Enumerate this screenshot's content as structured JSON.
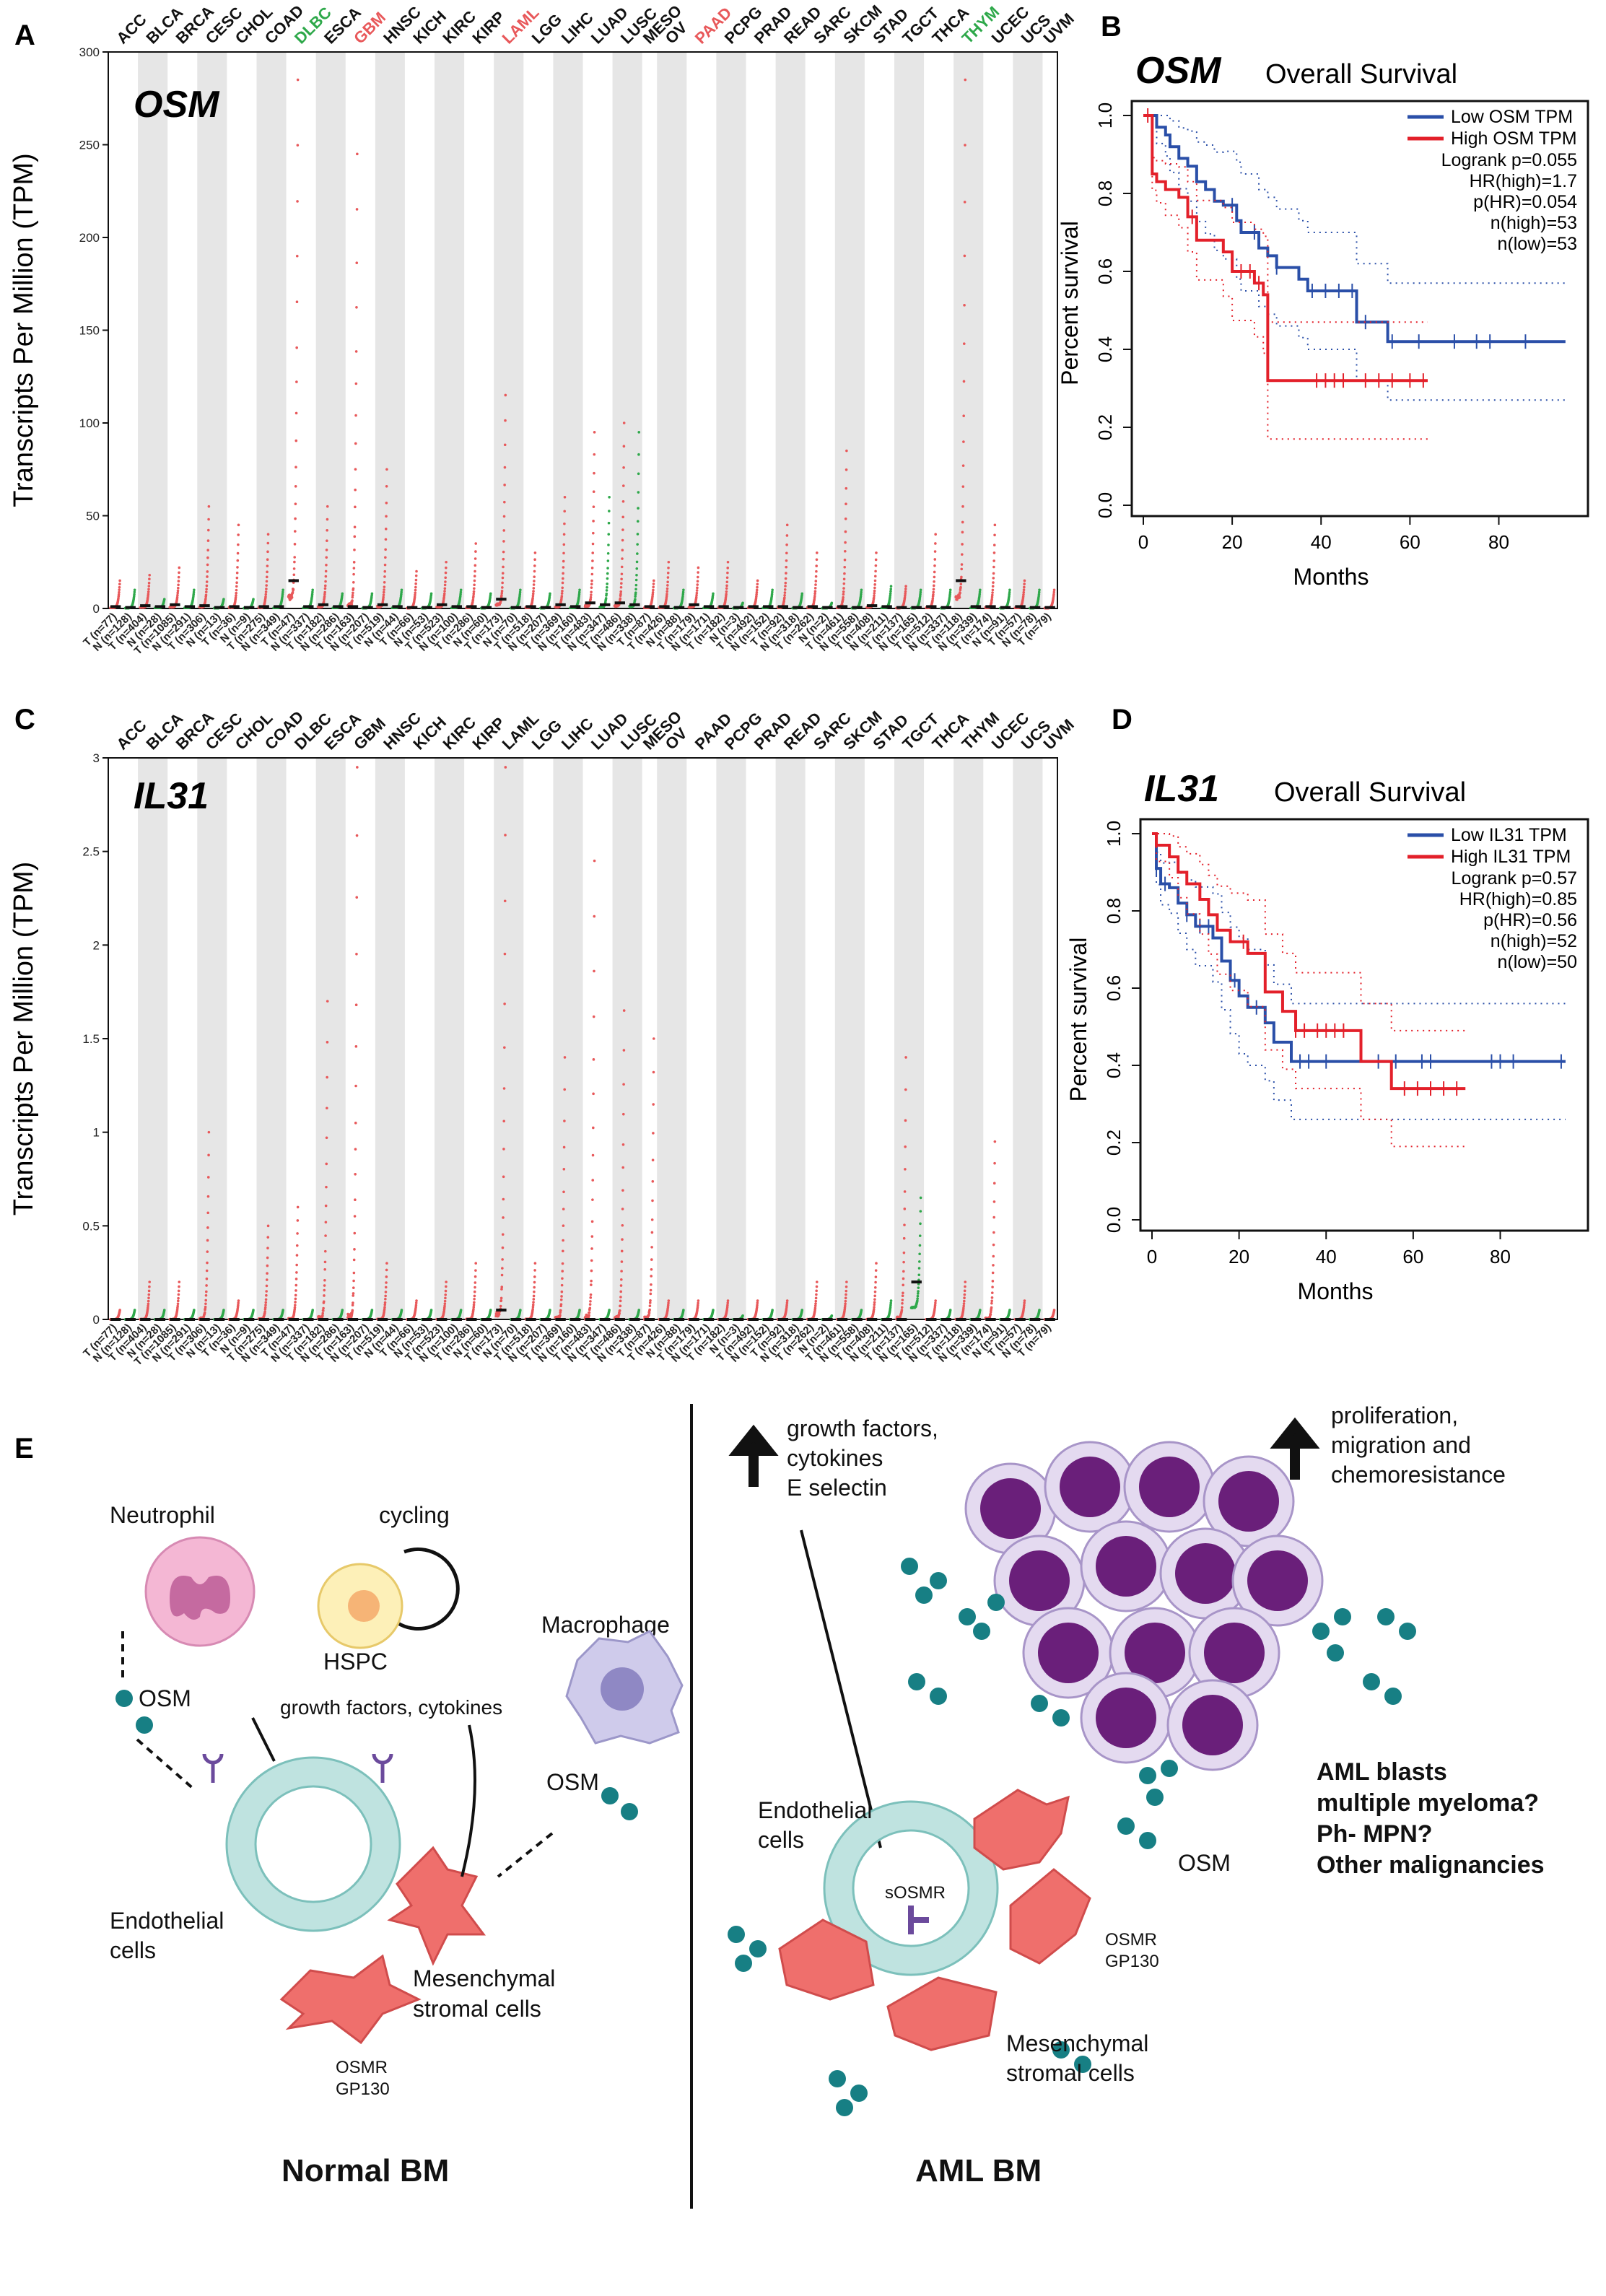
{
  "panels": {
    "a": "A",
    "b": "B",
    "c": "C",
    "d": "D",
    "e": "E"
  },
  "colors": {
    "tumor": "#e8585a",
    "normal": "#2ea84a",
    "band": "#e6e6e6",
    "low": "#2a4fa8",
    "high": "#e3202a",
    "teal": "#177f84",
    "blast": "#6a1f7a",
    "msc": "#ef6f6c",
    "ring": "#bfe3e0"
  },
  "chart_data": [
    {
      "type": "scatter",
      "gene": "OSM",
      "ylabel": "Transcripts Per Million (TPM)",
      "ylim": [
        0,
        300
      ],
      "yticks": [
        "0",
        "50",
        "100",
        "150",
        "200",
        "250",
        "300"
      ],
      "ytick_values": [
        0,
        50,
        100,
        150,
        200,
        250,
        300
      ],
      "cancer_types": [
        "ACC",
        "BLCA",
        "BRCA",
        "CESC",
        "CHOL",
        "COAD",
        "DLBC",
        "ESCA",
        "GBM",
        "HNSC",
        "KICH",
        "KIRC",
        "KIRP",
        "LAML",
        "LGG",
        "LIHC",
        "LUAD",
        "LUSC",
        "MESO",
        "OV",
        "PAAD",
        "PCPG",
        "PRAD",
        "READ",
        "SARC",
        "SKCM",
        "STAD",
        "TGCT",
        "THCA",
        "THYM",
        "UCEC",
        "UCS",
        "UVM"
      ],
      "highlight": {
        "DLBC": "#2ea84a",
        "GBM": "#e8585a",
        "LAML": "#e8585a",
        "PAAD": "#e8585a",
        "THYM": "#2ea84a"
      },
      "groups": [
        "T (n=77)",
        "N (n=128)",
        "T (n=404)",
        "N (n=28)",
        "T (n=1085)",
        "N (n=291)",
        "T (n=306)",
        "N (n=13)",
        "T (n=36)",
        "N (n=9)",
        "T (n=275)",
        "N (n=349)",
        "T (n=47)",
        "N (n=337)",
        "T (n=182)",
        "N (n=286)",
        "T (n=163)",
        "N (n=207)",
        "T (n=519)",
        "N (n=44)",
        "T (n=66)",
        "N (n=53)",
        "T (n=523)",
        "N (n=100)",
        "T (n=286)",
        "N (n=60)",
        "T (n=173)",
        "N (n=70)",
        "T (n=518)",
        "N (n=207)",
        "T (n=369)",
        "N (n=160)",
        "T (n=483)",
        "N (n=347)",
        "T (n=486)",
        "N (n=338)",
        "T (n=87)",
        "T (n=426)",
        "N (n=88)",
        "T (n=179)",
        "N (n=171)",
        "T (n=182)",
        "N (n=3)",
        "T (n=492)",
        "N (n=152)",
        "T (n=92)",
        "N (n=318)",
        "T (n=262)",
        "N (n=2)",
        "T (n=461)",
        "N (n=558)",
        "T (n=408)",
        "N (n=211)",
        "T (n=137)",
        "N (n=165)",
        "T (n=512)",
        "N (n=337)",
        "T (n=118)",
        "N (n=339)",
        "T (n=174)",
        "N (n=91)",
        "T (n=57)",
        "N (n=78)",
        "T (n=79)"
      ],
      "group_type_counts": [
        2,
        2,
        2,
        2,
        2,
        2,
        2,
        2,
        2,
        2,
        2,
        2,
        2,
        2,
        2,
        2,
        2,
        2,
        1,
        2,
        2,
        2,
        2,
        2,
        2,
        2,
        2,
        2,
        2,
        2,
        2,
        2,
        1
      ],
      "medians": [
        1,
        0.5,
        1.5,
        1,
        2,
        1,
        1.5,
        0.5,
        1,
        0.5,
        1,
        1,
        15,
        1,
        2,
        1,
        1,
        0.5,
        2,
        1,
        0.5,
        0.5,
        2,
        1,
        1,
        0.5,
        5,
        0.5,
        1,
        0.5,
        2,
        1,
        3,
        2,
        3,
        2,
        1,
        1,
        0.5,
        2,
        1,
        1,
        0.5,
        1,
        1,
        1,
        0.5,
        1,
        0.5,
        1,
        0.5,
        1.5,
        1,
        0.5,
        0.5,
        1,
        0.5,
        15,
        1,
        1,
        0.5,
        1,
        0.5,
        0.5
      ],
      "maxima": [
        15,
        10,
        18,
        5,
        22,
        10,
        55,
        5,
        45,
        5,
        40,
        10,
        285,
        10,
        55,
        8,
        245,
        8,
        75,
        10,
        20,
        8,
        25,
        10,
        35,
        8,
        115,
        10,
        30,
        8,
        60,
        10,
        95,
        60,
        100,
        95,
        15,
        25,
        10,
        22,
        8,
        25,
        3,
        15,
        10,
        45,
        8,
        30,
        3,
        85,
        10,
        30,
        12,
        12,
        10,
        40,
        10,
        285,
        10,
        45,
        10,
        15,
        10,
        10
      ]
    },
    {
      "type": "scatter",
      "gene": "IL31",
      "ylabel": "Transcripts Per Million (TPM)",
      "ylim": [
        0,
        3
      ],
      "yticks": [
        "0",
        "0.5",
        "1",
        "1.5",
        "2",
        "2.5",
        "3"
      ],
      "ytick_values": [
        0,
        0.5,
        1,
        1.5,
        2,
        2.5,
        3
      ],
      "cancer_types": [
        "ACC",
        "BLCA",
        "BRCA",
        "CESC",
        "CHOL",
        "COAD",
        "DLBC",
        "ESCA",
        "GBM",
        "HNSC",
        "KICH",
        "KIRC",
        "KIRP",
        "LAML",
        "LGG",
        "LIHC",
        "LUAD",
        "LUSC",
        "MESO",
        "OV",
        "PAAD",
        "PCPG",
        "PRAD",
        "READ",
        "SARC",
        "SKCM",
        "STAD",
        "TGCT",
        "THCA",
        "THYM",
        "UCEC",
        "UCS",
        "UVM"
      ],
      "highlight": {},
      "medians": [
        0,
        0,
        0,
        0,
        0,
        0,
        0,
        0,
        0,
        0,
        0,
        0,
        0,
        0,
        0,
        0,
        0,
        0,
        0,
        0,
        0,
        0,
        0,
        0,
        0,
        0,
        0.05,
        0,
        0,
        0,
        0,
        0,
        0,
        0,
        0,
        0,
        0,
        0,
        0,
        0,
        0,
        0,
        0,
        0,
        0,
        0,
        0,
        0,
        0,
        0,
        0,
        0,
        0,
        0,
        0.2,
        0,
        0,
        0,
        0,
        0,
        0,
        0,
        0,
        0
      ],
      "maxima": [
        0.05,
        0.05,
        0.2,
        0.05,
        0.2,
        0.05,
        1.0,
        0.05,
        0.1,
        0.05,
        0.5,
        0.05,
        0.6,
        0.05,
        1.7,
        0.05,
        2.95,
        0.05,
        0.3,
        0.05,
        0.1,
        0.05,
        0.2,
        0.05,
        0.3,
        0.05,
        2.95,
        0.05,
        0.3,
        0.05,
        1.4,
        0.05,
        2.45,
        0.05,
        1.65,
        0.05,
        1.5,
        0.1,
        0.05,
        0.1,
        0.05,
        0.1,
        0.02,
        0.1,
        0.05,
        0.1,
        0.05,
        0.2,
        0.02,
        0.2,
        0.05,
        0.3,
        0.1,
        1.4,
        0.65,
        0.1,
        0.05,
        0.2,
        0.05,
        0.95,
        0.05,
        0.1,
        0.05,
        0.05
      ]
    },
    {
      "type": "line",
      "gene": "OSM",
      "title": "Overall Survival",
      "xlabel": "Months",
      "ylabel": "Percent survival",
      "xticks": [
        "0",
        "20",
        "40",
        "60",
        "80"
      ],
      "xtick_values": [
        0,
        20,
        40,
        60,
        80
      ],
      "yticks": [
        "0.0",
        "0.2",
        "0.4",
        "0.6",
        "0.8",
        "1.0"
      ],
      "ytick_values": [
        0,
        0.2,
        0.4,
        0.6,
        0.8,
        1.0
      ],
      "xlim": [
        0,
        96
      ],
      "ylim": [
        0,
        1.03
      ],
      "legend": [
        "Low OSM TPM",
        "High OSM TPM"
      ],
      "stats": [
        "Logrank p=0.055",
        "HR(high)=1.7",
        "p(HR)=0.054",
        "n(high)=53",
        "n(low)=53"
      ],
      "series": [
        {
          "name": "Low OSM TPM",
          "x": [
            0,
            3,
            5,
            6,
            8,
            10,
            12,
            14,
            16,
            18,
            21,
            22,
            26,
            28,
            30,
            35,
            37,
            48,
            55,
            95
          ],
          "y": [
            1,
            0.97,
            0.95,
            0.92,
            0.89,
            0.87,
            0.83,
            0.81,
            0.78,
            0.77,
            0.73,
            0.7,
            0.66,
            0.64,
            0.61,
            0.58,
            0.55,
            0.47,
            0.42,
            0.42
          ],
          "censor": [
            20,
            25,
            30,
            38,
            41,
            44,
            47,
            50,
            56,
            62,
            70,
            75,
            78,
            86
          ]
        },
        {
          "name": "High OSM TPM",
          "x": [
            0,
            2,
            3,
            5,
            8,
            10,
            12,
            18,
            20,
            25,
            27,
            28,
            64
          ],
          "y": [
            1,
            0.85,
            0.83,
            0.81,
            0.79,
            0.74,
            0.68,
            0.65,
            0.6,
            0.57,
            0.54,
            0.32,
            0.32
          ],
          "censor": [
            1,
            11,
            22,
            24,
            26,
            39,
            41,
            43,
            45,
            50,
            53,
            56,
            60,
            63
          ]
        }
      ]
    },
    {
      "type": "line",
      "gene": "IL31",
      "title": "Overall Survival",
      "xlabel": "Months",
      "ylabel": "Percent survival",
      "xticks": [
        "0",
        "20",
        "40",
        "60",
        "80"
      ],
      "xtick_values": [
        0,
        20,
        40,
        60,
        80
      ],
      "yticks": [
        "0.0",
        "0.2",
        "0.4",
        "0.6",
        "0.8",
        "1.0"
      ],
      "ytick_values": [
        0,
        0.2,
        0.4,
        0.6,
        0.8,
        1.0
      ],
      "xlim": [
        0,
        96
      ],
      "ylim": [
        0,
        1.03
      ],
      "legend": [
        "Low IL31 TPM",
        "High IL31 TPM"
      ],
      "stats": [
        "Logrank p=0.57",
        "HR(high)=0.85",
        "p(HR)=0.56",
        "n(high)=52",
        "n(low)=50"
      ],
      "series": [
        {
          "name": "Low IL31 TPM",
          "x": [
            0,
            1,
            2,
            4,
            6,
            8,
            10,
            14,
            16,
            18,
            20,
            22,
            26,
            28,
            32,
            95
          ],
          "y": [
            1,
            0.91,
            0.87,
            0.86,
            0.82,
            0.79,
            0.76,
            0.73,
            0.67,
            0.62,
            0.58,
            0.55,
            0.51,
            0.46,
            0.41,
            0.41
          ],
          "censor": [
            1,
            3,
            8,
            11,
            13,
            19,
            24,
            34,
            36,
            40,
            52,
            56,
            62,
            64,
            78,
            80,
            83,
            94
          ]
        },
        {
          "name": "High IL31 TPM",
          "x": [
            0,
            1,
            4,
            6,
            8,
            11,
            13,
            15,
            18,
            22,
            26,
            30,
            33,
            48,
            55,
            72
          ],
          "y": [
            1,
            0.97,
            0.94,
            0.9,
            0.87,
            0.83,
            0.79,
            0.75,
            0.72,
            0.69,
            0.59,
            0.54,
            0.49,
            0.41,
            0.34,
            0.34
          ],
          "censor": [
            21,
            33,
            35,
            38,
            40,
            42,
            44,
            58,
            61,
            64,
            67,
            70
          ]
        }
      ]
    }
  ],
  "diagram": {
    "left": {
      "neutrophil": "Neutrophil",
      "cycling": "cycling",
      "hspc": "HSPC",
      "osm1": "OSM",
      "growth": "growth factors, cytokines",
      "macrophage": "Macrophage",
      "osm2": "OSM",
      "endo": [
        "Endothelial",
        "cells"
      ],
      "msc": [
        "Mesenchymal",
        "stromal cells"
      ],
      "receptor": [
        "OSMR",
        "GP130"
      ],
      "title": "Normal BM"
    },
    "right": {
      "growth": [
        "growth factors,",
        "cytokines",
        "E selectin"
      ],
      "prolif": [
        "proliferation,",
        "migration and",
        "chemoresistance"
      ],
      "endo": [
        "Endothelial",
        "cells"
      ],
      "sosmr": "sOSMR",
      "receptor": [
        "OSMR",
        "GP130"
      ],
      "msc": [
        "Mesenchymal",
        "stromal cells"
      ],
      "osm": "OSM",
      "malig": [
        "AML blasts",
        "multiple myeloma?",
        "Ph- MPN?",
        "Other malignancies"
      ],
      "title": "AML BM"
    }
  }
}
